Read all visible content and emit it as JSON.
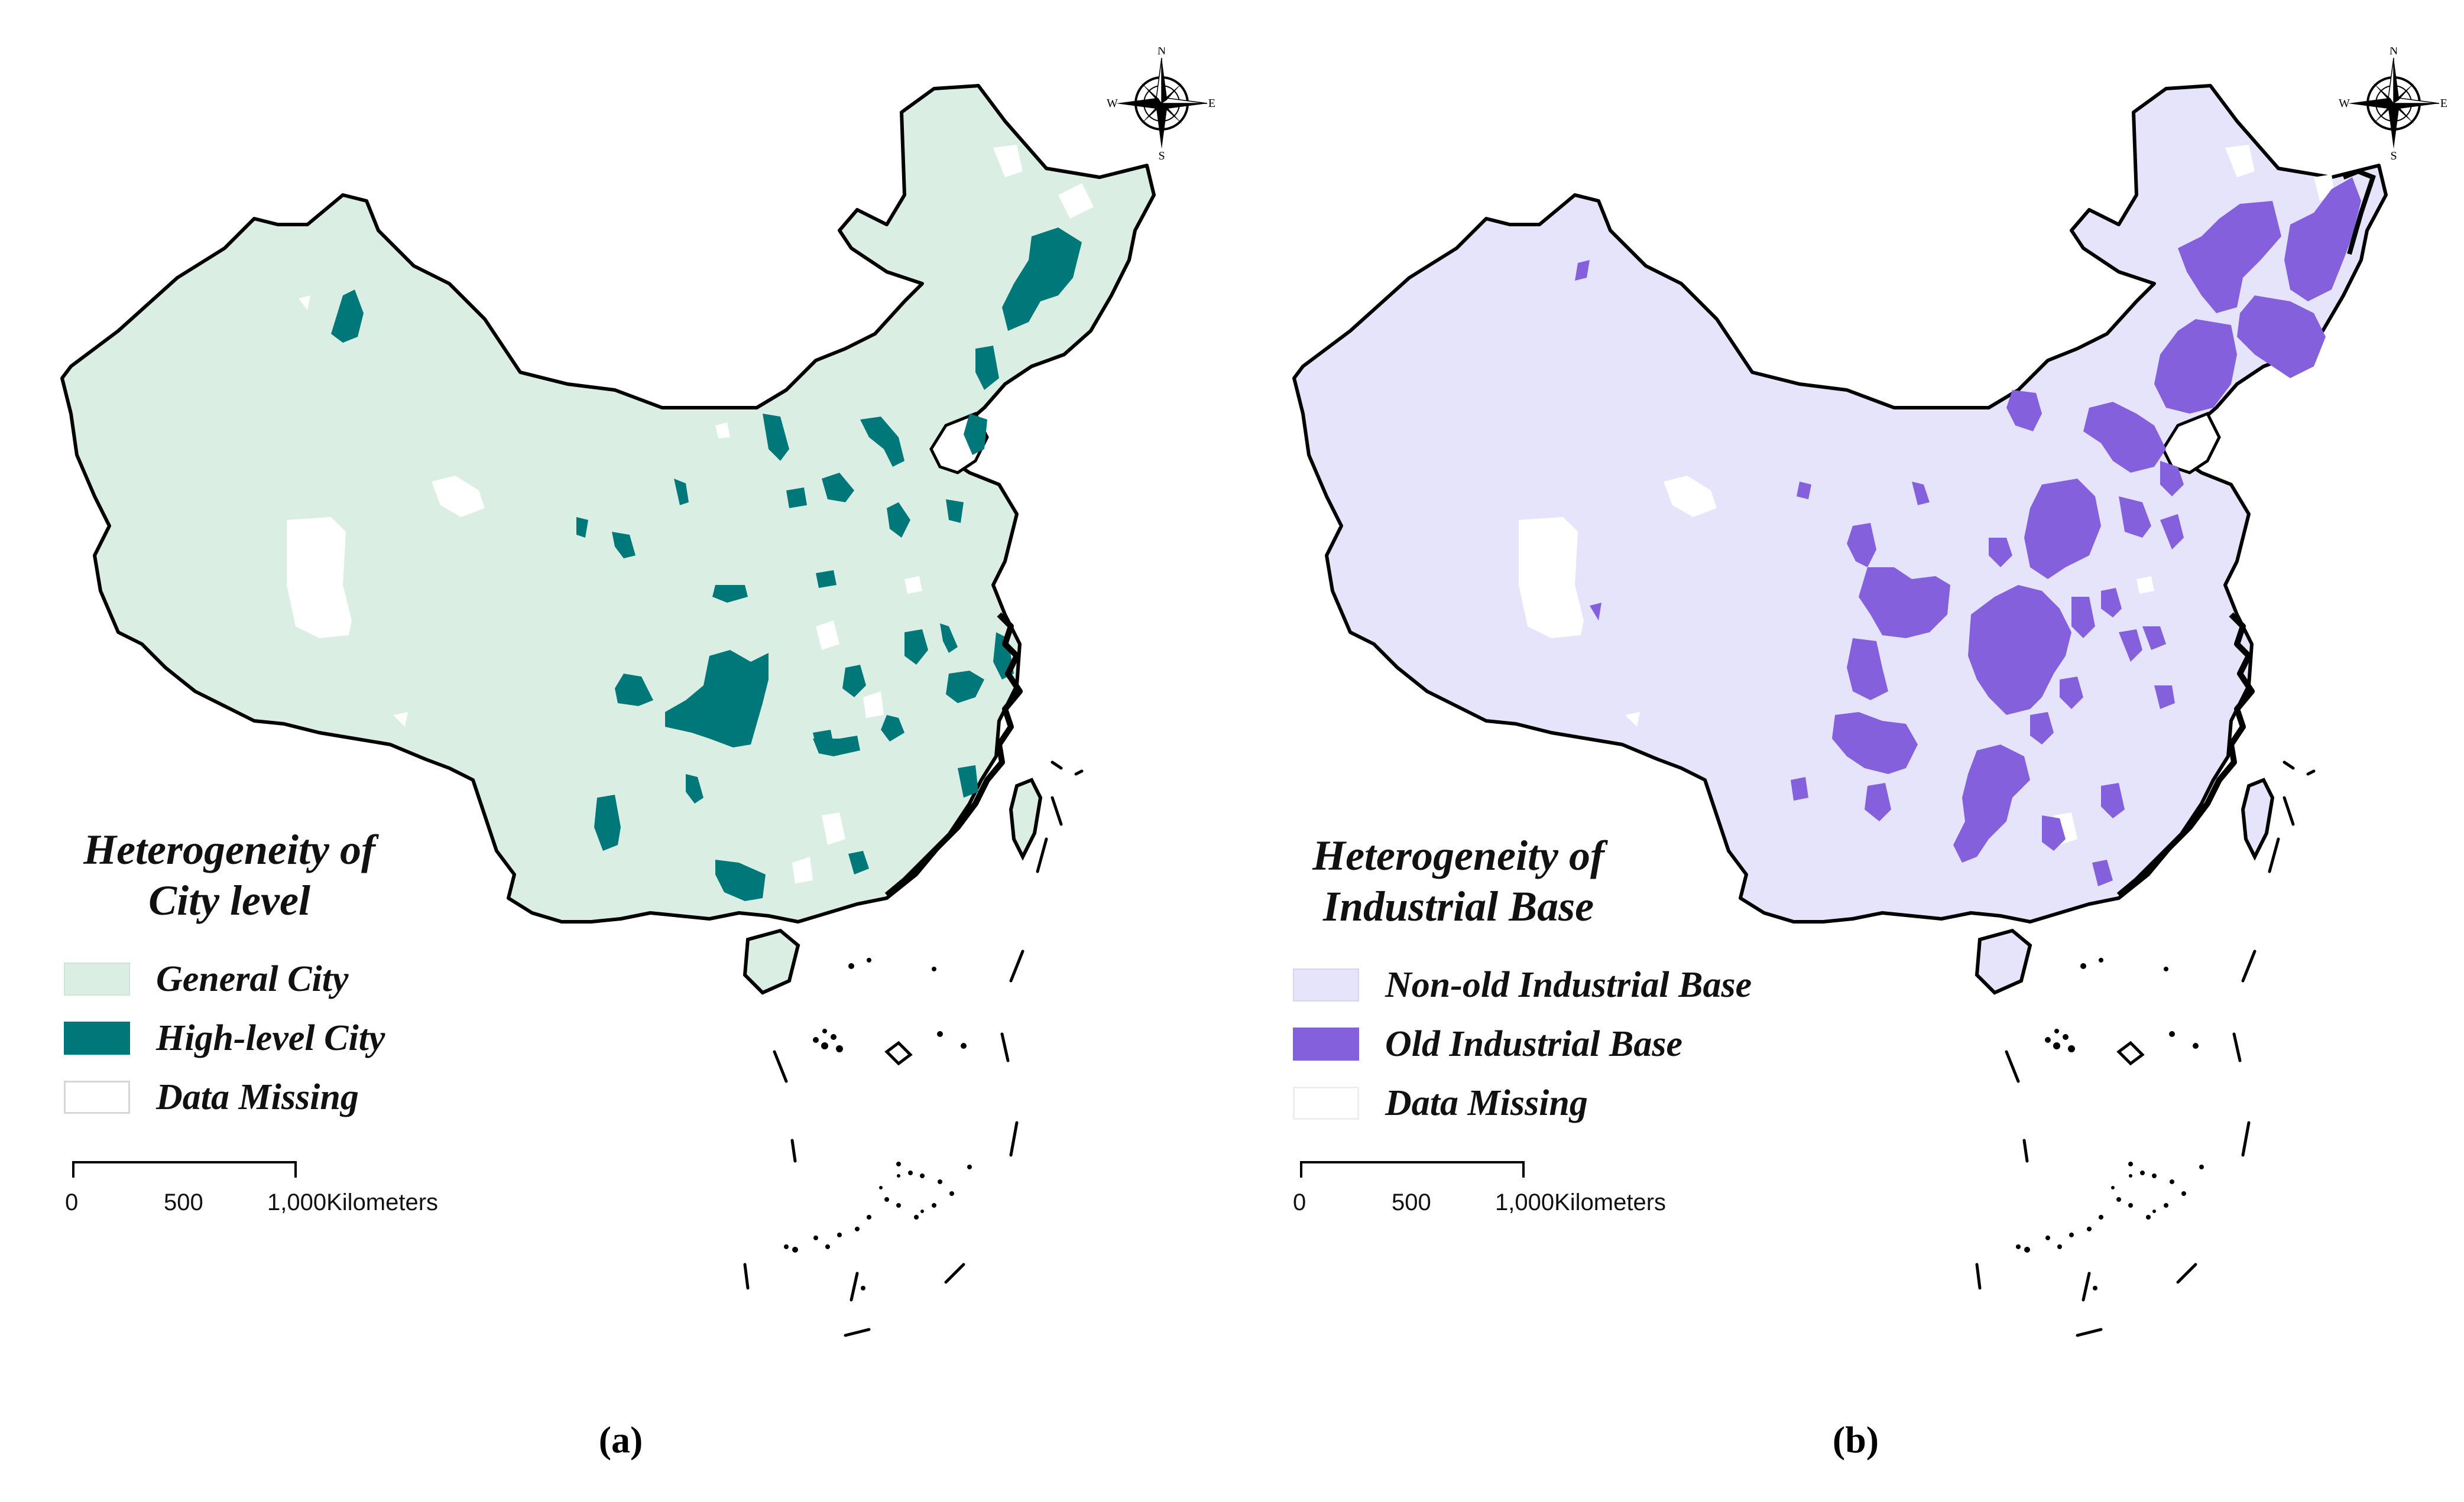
{
  "panels": [
    {
      "id": "a",
      "caption": "(a)",
      "legend": {
        "title_line1": "Heterogeneity of",
        "title_line2": "City level",
        "items": [
          {
            "label": "General City",
            "color": "#dbeee4"
          },
          {
            "label": "High-level City",
            "color": "#00787a"
          },
          {
            "label": "Data Missing",
            "color": "#ffffff"
          }
        ]
      },
      "scalebar": {
        "ticks": [
          "0",
          "500",
          "1,000"
        ],
        "unit": "Kilometers"
      },
      "compass": {
        "n": "N",
        "s": "S",
        "e": "E",
        "w": "W"
      }
    },
    {
      "id": "b",
      "caption": "(b)",
      "legend": {
        "title_line1": "Heterogeneity of",
        "title_line2": "Industrial Base",
        "items": [
          {
            "label": "Non-old Industrial Base",
            "color": "#e6e4fb"
          },
          {
            "label": "Old Industrial Base",
            "color": "#8560dd"
          },
          {
            "label": "Data Missing",
            "color": "#ffffff"
          }
        ]
      },
      "scalebar": {
        "ticks": [
          "0",
          "500",
          "1,000"
        ],
        "unit": "Kilometers"
      },
      "compass": {
        "n": "N",
        "s": "S",
        "e": "E",
        "w": "W"
      }
    }
  ]
}
